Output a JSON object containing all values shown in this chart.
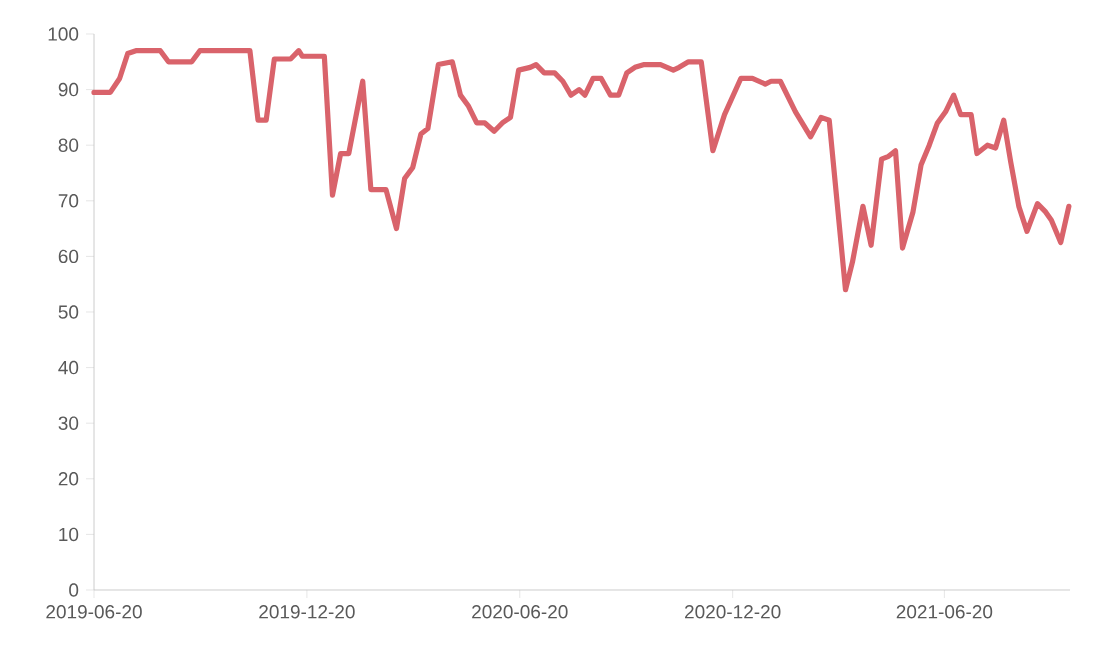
{
  "chart_data": {
    "type": "line",
    "color": "#d9636b",
    "line_style": "solid",
    "marker": "none",
    "grid": false,
    "x": [
      "2019-06-20",
      "2019-07-04",
      "2019-07-12",
      "2019-07-19",
      "2019-07-26",
      "2019-08-16",
      "2019-08-23",
      "2019-09-12",
      "2019-09-19",
      "2019-11-01",
      "2019-11-08",
      "2019-11-15",
      "2019-11-22",
      "2019-12-06",
      "2019-12-13",
      "2019-12-16",
      "2020-01-04",
      "2020-01-11",
      "2020-01-18",
      "2020-01-25",
      "2020-02-06",
      "2020-02-13",
      "2020-02-26",
      "2020-03-06",
      "2020-03-13",
      "2020-03-20",
      "2020-03-27",
      "2020-04-02",
      "2020-04-11",
      "2020-04-23",
      "2020-04-30",
      "2020-05-07",
      "2020-05-14",
      "2020-05-21",
      "2020-05-29",
      "2020-06-05",
      "2020-06-12",
      "2020-06-19",
      "2020-06-29",
      "2020-07-04",
      "2020-07-11",
      "2020-07-20",
      "2020-07-27",
      "2020-08-03",
      "2020-08-10",
      "2020-08-15",
      "2020-08-22",
      "2020-08-29",
      "2020-09-06",
      "2020-09-13",
      "2020-09-20",
      "2020-09-27",
      "2020-10-05",
      "2020-10-19",
      "2020-10-30",
      "2020-11-04",
      "2020-11-12",
      "2020-11-23",
      "2020-12-03",
      "2020-12-13",
      "2020-12-27",
      "2021-01-06",
      "2021-01-17",
      "2021-01-22",
      "2021-01-30",
      "2021-02-12",
      "2021-02-25",
      "2021-03-06",
      "2021-03-13",
      "2021-03-27",
      "2021-04-02",
      "2021-04-11",
      "2021-04-18",
      "2021-04-27",
      "2021-05-03",
      "2021-05-09",
      "2021-05-15",
      "2021-05-24",
      "2021-05-31",
      "2021-06-07",
      "2021-06-14",
      "2021-06-21",
      "2021-06-28",
      "2021-07-04",
      "2021-07-13",
      "2021-07-18",
      "2021-07-27",
      "2021-08-03",
      "2021-08-10",
      "2021-08-16",
      "2021-08-23",
      "2021-08-30",
      "2021-09-08",
      "2021-09-15",
      "2021-09-20",
      "2021-09-28",
      "2021-10-05"
    ],
    "values": [
      89.5,
      89.5,
      92,
      96.5,
      97,
      97,
      95,
      95,
      97,
      97,
      84.5,
      84.5,
      95.5,
      95.5,
      97,
      96,
      96,
      71,
      78.5,
      78.5,
      91.5,
      72,
      72,
      65,
      74,
      76,
      82,
      83,
      94.5,
      95,
      89,
      87,
      84,
      84,
      82.5,
      84,
      85,
      93.5,
      94,
      94.5,
      93,
      93,
      91.5,
      89,
      90,
      89,
      92,
      92,
      89,
      89,
      93,
      94,
      94.5,
      94.5,
      93.5,
      94,
      95,
      95,
      79,
      85.5,
      92,
      92,
      91,
      91.5,
      91.5,
      86,
      81.5,
      85,
      84.5,
      54,
      59,
      69,
      62,
      77.5,
      78,
      79,
      61.5,
      68,
      76.5,
      80,
      84,
      86,
      89,
      85.5,
      85.5,
      78.5,
      80,
      79.5,
      84.5,
      77,
      69,
      64.5,
      69.5,
      68,
      66.5,
      62.5,
      69
    ],
    "xlim": [
      "2019-06-20",
      "2021-10-06"
    ],
    "xticks": [
      "2019-06-20",
      "2019-12-20",
      "2020-06-20",
      "2020-12-20",
      "2021-06-20"
    ],
    "ylim": [
      0,
      100
    ],
    "yticks": [
      0,
      10,
      20,
      30,
      40,
      50,
      60,
      70,
      80,
      90,
      100
    ]
  }
}
